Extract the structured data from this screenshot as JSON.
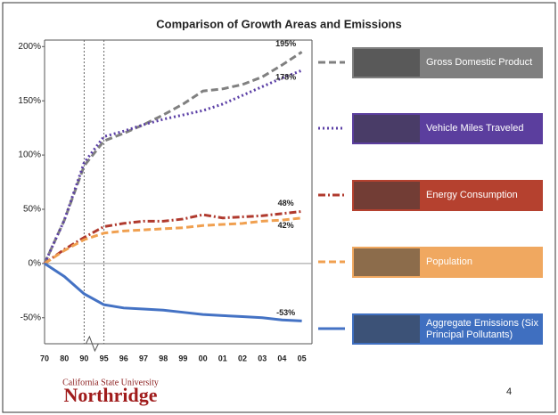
{
  "chart_data": {
    "type": "line",
    "title": "Comparison of Growth Areas and Emissions",
    "categories": [
      "70",
      "80",
      "90",
      "95",
      "96",
      "97",
      "98",
      "99",
      "00",
      "01",
      "02",
      "03",
      "04",
      "05"
    ],
    "ylim": [
      -74,
      206
    ],
    "yticks": [
      {
        "value": -50,
        "label": "-50%"
      },
      {
        "value": 0,
        "label": "0%"
      },
      {
        "value": 50,
        "label": "50%"
      },
      {
        "value": 100,
        "label": "100%"
      },
      {
        "value": 150,
        "label": "150%"
      },
      {
        "value": 200,
        "label": "200%"
      }
    ],
    "grid": false,
    "series": [
      {
        "name": "Gross Domestic Product",
        "color": "#808080",
        "box_color": "#7f7f7f",
        "style": "dashed",
        "values": [
          0,
          40,
          90,
          113,
          120,
          128,
          137,
          147,
          159,
          161,
          165,
          172,
          183,
          195
        ],
        "value_labels": [
          null,
          null,
          null,
          null,
          null,
          null,
          null,
          null,
          null,
          null,
          null,
          null,
          null,
          "195%"
        ]
      },
      {
        "name": "Vehicle Miles Traveled",
        "color": "#5b3fa6",
        "box_color": "#5b3e9e",
        "style": "dotted",
        "values": [
          0,
          40,
          93,
          117,
          122,
          128,
          133,
          137,
          141,
          147,
          155,
          163,
          171,
          178
        ],
        "value_labels": [
          null,
          null,
          null,
          null,
          null,
          null,
          null,
          null,
          null,
          null,
          null,
          null,
          null,
          "178%"
        ]
      },
      {
        "name": "Energy Consumption",
        "color": "#b03a2e",
        "box_color": "#b5412f",
        "style": "dashdot",
        "values": [
          0,
          13,
          24,
          34,
          37,
          39,
          39,
          41,
          45,
          42,
          43,
          44,
          46,
          48
        ],
        "value_labels": [
          null,
          null,
          null,
          null,
          null,
          null,
          null,
          null,
          null,
          null,
          null,
          null,
          null,
          "48%"
        ]
      },
      {
        "name": "Population",
        "color": "#f0a050",
        "box_color": "#f0a860",
        "style": "dashed",
        "values": [
          0,
          12,
          22,
          28,
          30,
          31,
          32,
          33,
          35,
          36,
          37,
          39,
          40,
          42
        ],
        "value_labels": [
          null,
          null,
          null,
          null,
          null,
          null,
          null,
          null,
          null,
          null,
          null,
          null,
          null,
          "42%"
        ]
      },
      {
        "name": "Aggregate Emissions (Six Principal Pollutants)",
        "color": "#4472c4",
        "box_color": "#3f6fc0",
        "style": "solid",
        "values": [
          0,
          -12,
          -28,
          -38,
          -41,
          -42,
          -43,
          -45,
          -47,
          -48,
          -49,
          -50,
          -52,
          -53
        ],
        "value_labels": [
          null,
          null,
          null,
          null,
          null,
          null,
          null,
          null,
          null,
          null,
          null,
          null,
          null,
          "-53%"
        ]
      }
    ]
  },
  "footer": {
    "university": "California State University",
    "name": "Northridge",
    "page_number": "4"
  }
}
